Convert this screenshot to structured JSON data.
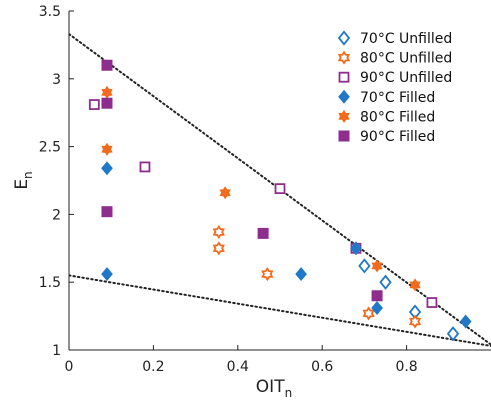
{
  "chart_data": {
    "type": "scatter",
    "xlabel": "OIT",
    "xlabel_sub": "n",
    "ylabel": "E",
    "ylabel_sub": "n",
    "xlim": [
      0,
      1
    ],
    "ylim": [
      1,
      3.5
    ],
    "xticks": [
      0,
      0.2,
      0.4,
      0.6,
      0.8
    ],
    "xtick_labels": [
      "0",
      "0.2",
      "0.4",
      "0.6",
      "0.8"
    ],
    "yticks": [
      1,
      1.5,
      2,
      2.5,
      3,
      3.5
    ],
    "ytick_labels": [
      "1",
      "1.5",
      "2",
      "2.5",
      "3",
      "3.5"
    ],
    "grid": false,
    "legend_position": "top-right",
    "series": [
      {
        "name": "70°C Unfilled",
        "marker": "diamond",
        "filled": false,
        "color": "#1f78c8",
        "points": [
          [
            0.7,
            1.62
          ],
          [
            0.75,
            1.5
          ],
          [
            0.82,
            1.28
          ],
          [
            0.91,
            1.12
          ]
        ]
      },
      {
        "name": "80°C Unfilled",
        "marker": "hexagram",
        "filled": false,
        "color": "#f26a1b",
        "points": [
          [
            0.355,
            1.87
          ],
          [
            0.355,
            1.75
          ],
          [
            0.47,
            1.56
          ],
          [
            0.71,
            1.27
          ],
          [
            0.82,
            1.21
          ]
        ]
      },
      {
        "name": "90°C Unfilled",
        "marker": "square",
        "filled": false,
        "color": "#8e2d8e",
        "points": [
          [
            0.06,
            2.81
          ],
          [
            0.18,
            2.35
          ],
          [
            0.5,
            2.19
          ],
          [
            0.68,
            1.75
          ],
          [
            0.86,
            1.35
          ]
        ]
      },
      {
        "name": "70°C Filled",
        "marker": "diamond",
        "filled": true,
        "color": "#1f78c8",
        "points": [
          [
            0.09,
            2.34
          ],
          [
            0.09,
            1.56
          ],
          [
            0.55,
            1.56
          ],
          [
            0.68,
            1.75
          ],
          [
            0.73,
            1.31
          ],
          [
            0.94,
            1.21
          ]
        ]
      },
      {
        "name": "80°C Filled",
        "marker": "hexagram",
        "filled": true,
        "color": "#f26a1b",
        "points": [
          [
            0.09,
            2.9
          ],
          [
            0.09,
            2.48
          ],
          [
            0.37,
            2.16
          ],
          [
            0.73,
            1.62
          ],
          [
            0.82,
            1.48
          ]
        ]
      },
      {
        "name": "90°C Filled",
        "marker": "square",
        "filled": true,
        "color": "#8e2d8e",
        "points": [
          [
            0.09,
            3.1
          ],
          [
            0.09,
            2.82
          ],
          [
            0.09,
            2.02
          ],
          [
            0.46,
            1.86
          ],
          [
            0.73,
            1.4
          ]
        ]
      }
    ],
    "boundary_lines": [
      {
        "style": "dotted",
        "color": "#222222",
        "from": [
          0,
          3.33
        ],
        "to": [
          1,
          1.04
        ]
      },
      {
        "style": "dotted",
        "color": "#222222",
        "from": [
          0,
          1.55
        ],
        "to": [
          1,
          1.03
        ]
      }
    ]
  }
}
